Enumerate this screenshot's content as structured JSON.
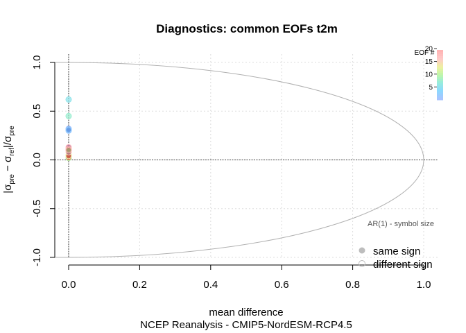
{
  "chart_data": {
    "type": "scatter",
    "title": "Diagnostics: common EOFs t2m",
    "xlabel": "mean difference",
    "ylabel_parts": [
      "|σ",
      "pre",
      " − σ",
      "ref",
      "|/σ",
      "pre"
    ],
    "subtitle": "NCEP Reanalysis  -  CMIP5-NordESM-RCP4.5",
    "xlim": [
      -0.04,
      1.04
    ],
    "ylim": [
      -1.0,
      1.0
    ],
    "x_ticks": [
      "0.0",
      "0.2",
      "0.4",
      "0.6",
      "0.8",
      "1.0"
    ],
    "y_ticks": [
      "1.0",
      "0.5",
      "0.0",
      "-0.5",
      "-1.0"
    ],
    "grid": true,
    "reference_curve": "semi-ellipse through (0,1), (1,0), (0,-1)",
    "colorbar": {
      "title": "EOF #",
      "ticks": [
        "20",
        "15",
        "10",
        "5"
      ],
      "range": [
        1,
        20
      ],
      "colors": [
        "#b8c8ff",
        "#8cd8ff",
        "#9ff0e0",
        "#c8f8a0",
        "#f0f0a0",
        "#ffc8c8"
      ]
    },
    "legend": {
      "header": "AR(1) - symbol size",
      "items": [
        {
          "label": "same sign",
          "filled": true
        },
        {
          "label": "different sign",
          "filled": false
        }
      ]
    },
    "points": [
      {
        "x": 0.0,
        "y": 0.32,
        "eof": 1
      },
      {
        "x": 0.0,
        "y": 0.3,
        "eof": 2
      },
      {
        "x": 0.0,
        "y": 0.31,
        "eof": 3
      },
      {
        "x": 0.0,
        "y": 0.62,
        "eof": 6
      },
      {
        "x": 0.0,
        "y": 0.45,
        "eof": 8
      },
      {
        "x": 0.0,
        "y": 0.02,
        "eof": 10
      },
      {
        "x": 0.0,
        "y": 0.05,
        "eof": 12
      },
      {
        "x": 0.0,
        "y": 0.04,
        "eof": 14
      },
      {
        "x": 0.0,
        "y": 0.08,
        "eof": 16
      },
      {
        "x": 0.0,
        "y": 0.13,
        "eof": 18
      },
      {
        "x": 0.0,
        "y": 0.11,
        "eof": 19
      },
      {
        "x": 0.0,
        "y": 0.1,
        "eof": 20
      }
    ]
  }
}
